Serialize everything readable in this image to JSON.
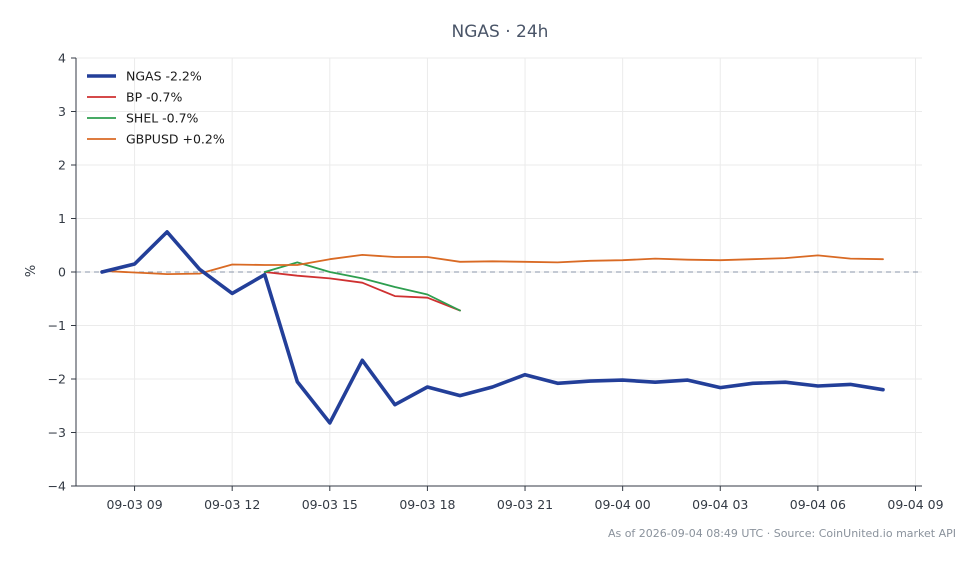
{
  "chart_data": {
    "type": "line",
    "title": "NGAS · 24h",
    "ylabel": "%",
    "xlabel": "",
    "ylim": [
      -4,
      4
    ],
    "yticks": [
      -4,
      -3,
      -2,
      -1,
      0,
      1,
      2,
      3,
      4
    ],
    "ytick_labels": [
      "−4",
      "−3",
      "−2",
      "−1",
      "0",
      "1",
      "2",
      "3",
      "4"
    ],
    "xlim": [
      7.2,
      33.2
    ],
    "xticks": [
      9,
      12,
      15,
      18,
      21,
      24,
      27,
      30,
      33
    ],
    "xtick_labels": [
      "09-03 09",
      "09-03 12",
      "09-03 15",
      "09-03 18",
      "09-03 21",
      "09-04 00",
      "09-04 03",
      "09-04 06",
      "09-04 09"
    ],
    "grid": true,
    "zero_line": true,
    "legend_position": "top-left",
    "footer": "As of 2026-09-04 08:49 UTC · Source: CoinUnited.io market API",
    "series": [
      {
        "name": "NGAS -2.2%",
        "color": "#233f99",
        "x": [
          8,
          9,
          10,
          11,
          12,
          13,
          14,
          15,
          16,
          17,
          18,
          19,
          20,
          21,
          22,
          23,
          24,
          25,
          26,
          27,
          28,
          29,
          30,
          31,
          32
        ],
        "y": [
          0.0,
          0.15,
          0.75,
          0.05,
          -0.4,
          -0.05,
          -2.05,
          -2.82,
          -1.65,
          -2.48,
          -2.15,
          -2.31,
          -2.15,
          -1.92,
          -2.08,
          -2.04,
          -2.02,
          -2.06,
          -2.02,
          -2.16,
          -2.08,
          -2.06,
          -2.13,
          -2.1,
          -2.2
        ]
      },
      {
        "name": "BP -0.7%",
        "color": "#cf3131",
        "x": [
          13,
          14,
          15,
          16,
          17,
          18,
          19
        ],
        "y": [
          0.0,
          -0.07,
          -0.12,
          -0.2,
          -0.45,
          -0.48,
          -0.72
        ]
      },
      {
        "name": "SHEL -0.7%",
        "color": "#2e9e4f",
        "x": [
          13,
          14,
          15,
          16,
          17,
          18,
          19
        ],
        "y": [
          0.0,
          0.18,
          0.0,
          -0.12,
          -0.28,
          -0.42,
          -0.72
        ]
      },
      {
        "name": "GBPUSD +0.2%",
        "color": "#d96a24",
        "x": [
          8,
          9,
          10,
          11,
          12,
          13,
          14,
          15,
          16,
          17,
          18,
          19,
          20,
          21,
          22,
          23,
          24,
          25,
          26,
          27,
          28,
          29,
          30,
          31,
          32
        ],
        "y": [
          0.02,
          -0.01,
          -0.04,
          -0.03,
          0.14,
          0.13,
          0.13,
          0.24,
          0.32,
          0.28,
          0.28,
          0.19,
          0.2,
          0.19,
          0.18,
          0.21,
          0.22,
          0.25,
          0.23,
          0.22,
          0.24,
          0.26,
          0.31,
          0.25,
          0.24
        ]
      }
    ]
  }
}
